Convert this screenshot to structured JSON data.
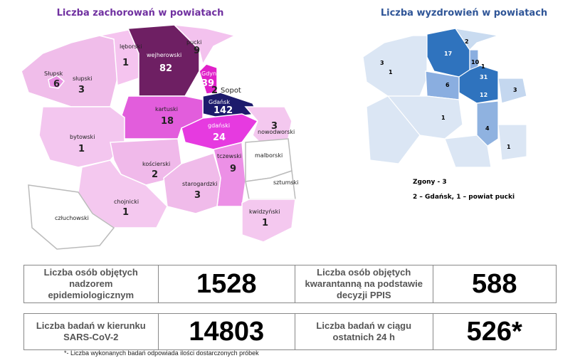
{
  "left_map": {
    "title": "Liczba zachorowań w powiatach",
    "regions": [
      {
        "name": "lęborski",
        "value": 1
      },
      {
        "name": "wejherowski",
        "value": 82
      },
      {
        "name": "pucki",
        "value": 9
      },
      {
        "name": "Gdynia",
        "value": 39
      },
      {
        "name": "Sopot",
        "value": 2
      },
      {
        "name": "Słupsk",
        "value": 6
      },
      {
        "name": "słupski",
        "value": 3
      },
      {
        "name": "Gdańsk",
        "value": 142
      },
      {
        "name": "kartuski",
        "value": 18
      },
      {
        "name": "gdański",
        "value": 24
      },
      {
        "name": "nowodworski",
        "value": 3
      },
      {
        "name": "bytowski",
        "value": 1
      },
      {
        "name": "kościerski",
        "value": 2
      },
      {
        "name": "tczewski",
        "value": 9
      },
      {
        "name": "malborski"
      },
      {
        "name": "sztumski"
      },
      {
        "name": "starogardzki",
        "value": 3
      },
      {
        "name": "chojnicki",
        "value": 1
      },
      {
        "name": "człuchowski"
      },
      {
        "name": "kwidzyński",
        "value": 1
      }
    ]
  },
  "right_map": {
    "title": "Liczba wyzdrowień w powiatach",
    "values": [
      3,
      1,
      17,
      2,
      10,
      1,
      31,
      6,
      12,
      3,
      1,
      4,
      1
    ],
    "deaths": "Zgony - 3",
    "deaths_detail": "2 – Gdańsk, 1 – powiat pucki"
  },
  "table": {
    "rows": [
      [
        {
          "label": "Liczba osób objętych nadzorem epidemiologicznym",
          "value": 1528
        },
        {
          "label": "Liczba osób objętych kwarantanną na podstawie decyzji PPIS",
          "value": 588
        }
      ],
      [
        {
          "label": "Liczba badań w kierunku SARS-CoV-2",
          "value": 14803
        },
        {
          "label": "Liczba badań w ciągu ostatnich 24 h",
          "value": "526*"
        }
      ]
    ],
    "footnote": "*- Liczba wykonanych badań odpowiada ilości dostarczonych próbek"
  }
}
